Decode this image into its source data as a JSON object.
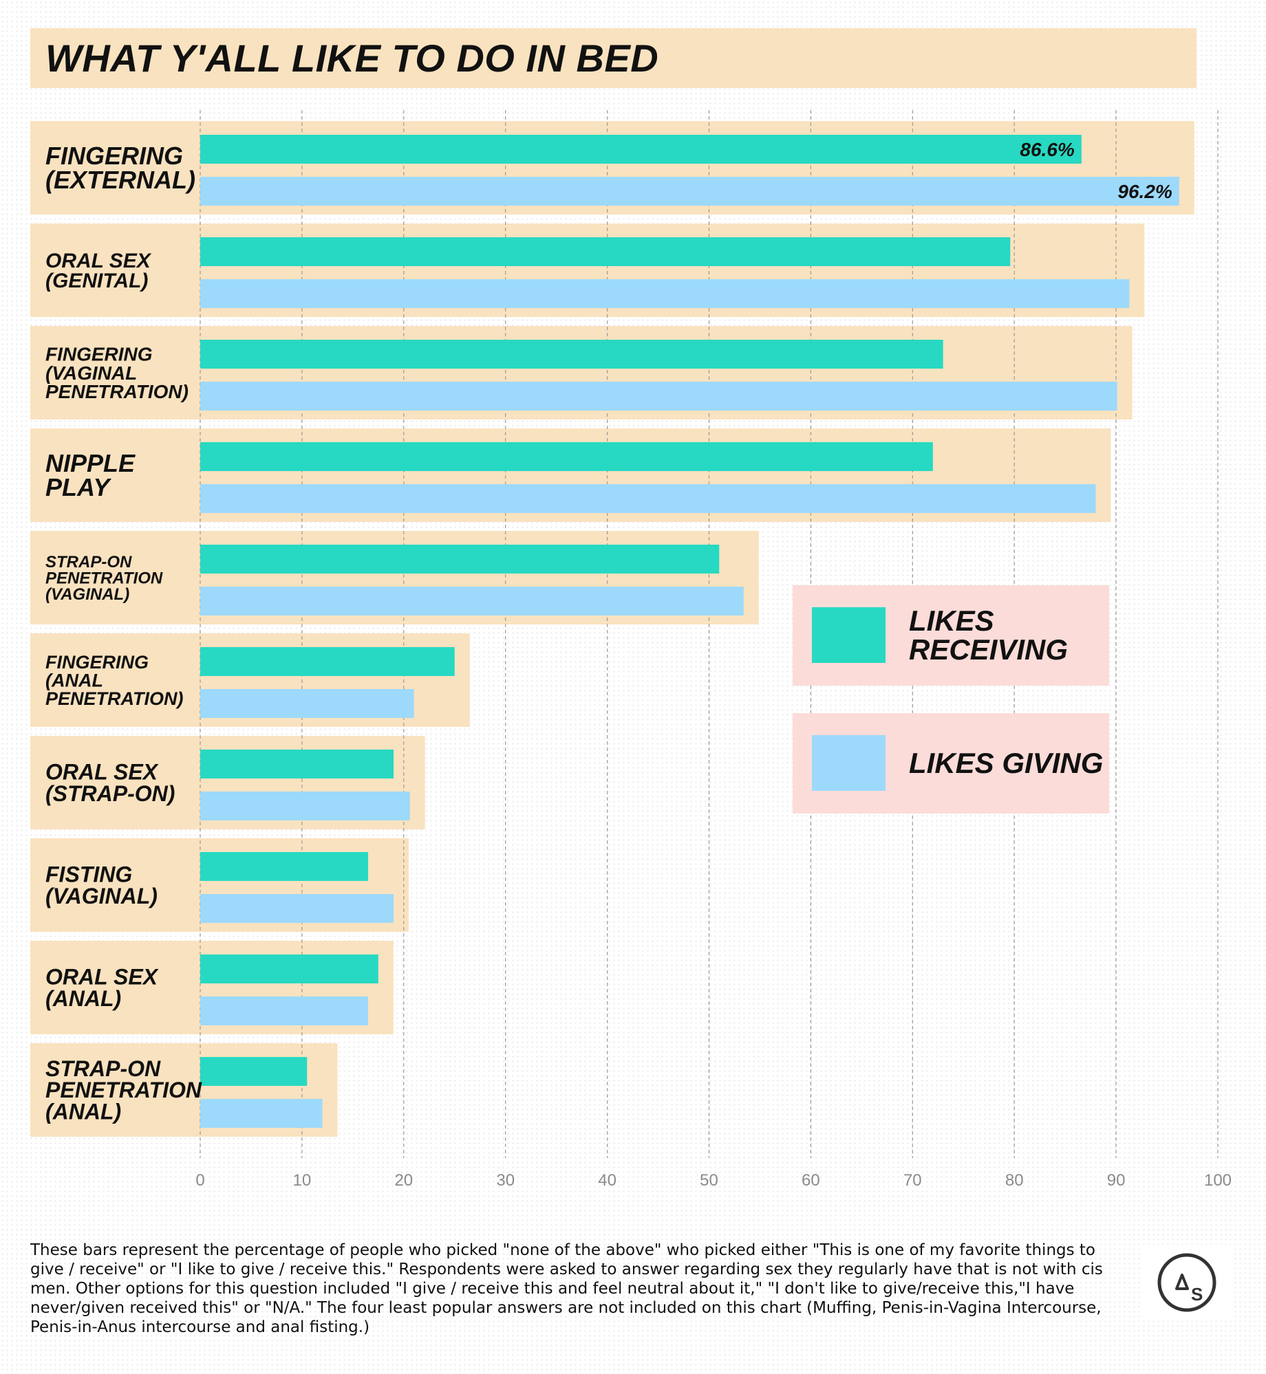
{
  "title": "WHAT Y'ALL LIKE TO DO IN BED",
  "footnote": "These bars represent the percentage of people who picked \"none of the above\" who picked either \"This is one of my favorite things to give / receive\" or \"I like to give / receive this.\" Respondents were asked to answer regarding sex they regularly have that is not with cis men. Other options for this question included \"I give / receive this and feel neutral about it,\" \"I don't like to give/receive this,\"I have never/given received this\" or \"N/A.\" The four least popular answers are not included on this chart (Muffing, Penis-in-Vagina Intercourse, Penis-in-Anus intercourse and anal fisting.)",
  "logo_text": "AS",
  "colors": {
    "receiving": "#27d9c2",
    "giving": "#9dd9fb",
    "panel": "#f9e2bf",
    "legend_bg": "#fbdcd8",
    "grid": "#9a9a9a",
    "logo": "#333333"
  },
  "chart_data": {
    "type": "bar",
    "orientation": "horizontal",
    "title": "WHAT Y'ALL LIKE TO DO IN BED",
    "xlim": [
      0,
      100
    ],
    "xticks": [
      "0",
      "10",
      "20",
      "30",
      "40",
      "50",
      "60",
      "70",
      "80",
      "90",
      "100"
    ],
    "grid": true,
    "legend_position": "right",
    "categories": [
      "FINGERING\n(EXTERNAL)",
      "ORAL SEX\n(GENITAL)",
      "FINGERING\n(VAGINAL\nPENETRATION)",
      "NIPPLE\nPLAY",
      "STRAP-ON\nPENETRATION\n(VAGINAL)",
      "FINGERING\n(ANAL\nPENETRATION)",
      "ORAL SEX\n(STRAP-ON)",
      "FISTING\n(VAGINAL)",
      "ORAL SEX\n(ANAL)",
      "STRAP-ON\nPENETRATION\n(ANAL)"
    ],
    "series": [
      {
        "name": "LIKES RECEIVING",
        "values": [
          86.6,
          79.6,
          73.0,
          72.0,
          51.0,
          25.0,
          19.0,
          16.5,
          17.5,
          10.5
        ],
        "data_labels": [
          "86.6%",
          "",
          "",
          "",
          "",
          "",
          "",
          "",
          "",
          ""
        ]
      },
      {
        "name": "LIKES GIVING",
        "values": [
          96.2,
          91.3,
          90.1,
          88.0,
          53.4,
          21.0,
          20.6,
          19.0,
          16.5,
          12.0
        ],
        "data_labels": [
          "96.2%",
          "",
          "",
          "",
          "",
          "",
          "",
          "",
          "",
          ""
        ]
      }
    ]
  }
}
